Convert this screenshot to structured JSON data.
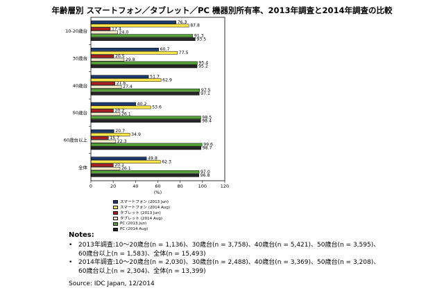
{
  "title": "年齢層別 スマートフォン／タブレット／PC 機器別所有率、2013年調査と2014年調査の比較",
  "chart_data": {
    "type": "bar",
    "orientation": "horizontal",
    "categories": [
      "10-20歳台",
      "30歳台",
      "40歳台",
      "50歳台",
      "60歳台以上",
      "全体"
    ],
    "series": [
      {
        "name": "スマートフォン (2013 Jun)",
        "color": "#1f3b6e",
        "values": [
          76.3,
          60.7,
          51.7,
          40.2,
          20.7,
          49.8
        ]
      },
      {
        "name": "スマートフォン (2014 Aug)",
        "color": "#ffe64d",
        "values": [
          87.8,
          77.5,
          62.9,
          53.6,
          34.9,
          62.3
        ]
      },
      {
        "name": "タブレット (2013 Jun)",
        "color": "#a51e22",
        "values": [
          17.4,
          20.5,
          21.6,
          20.2,
          15.7,
          20.1
        ]
      },
      {
        "name": "タブレット (2014 Aug)",
        "color": "#efe9c8",
        "values": [
          24.0,
          29.8,
          27.4,
          26.1,
          22.3,
          26.1
        ]
      },
      {
        "name": "PC (2013 Jun)",
        "color": "#57a23a",
        "values": [
          91.3,
          95.4,
          97.5,
          98.5,
          99.6,
          97.0
        ]
      },
      {
        "name": "PC (2014 Aug)",
        "color": "#262626",
        "values": [
          93.5,
          95.2,
          97.1,
          98.4,
          98.7,
          96.8
        ]
      }
    ],
    "xlabel": "(%)",
    "xlim": [
      0,
      120
    ],
    "xticks": [
      0,
      20,
      40,
      60,
      80,
      100,
      120
    ],
    "grid": false,
    "legend_position": "bottom"
  },
  "legend_items": [
    {
      "label": "スマートフォン (2013 Jun)",
      "color": "#1f3b6e"
    },
    {
      "label": "スマートフォン (2014 Aug)",
      "color": "#ffe64d"
    },
    {
      "label": "タブレット (2013 Jun)",
      "color": "#a51e22"
    },
    {
      "label": "タブレット (2014 Aug)",
      "color": "#efe9c8"
    },
    {
      "label": "PC (2013 Jun)",
      "color": "#57a23a"
    },
    {
      "label": "PC (2014 Aug)",
      "color": "#262626"
    }
  ],
  "notes": {
    "heading": "Notes:",
    "bullet": "•",
    "items": [
      {
        "line1": "2013年調査:10〜20歳台(n = 1,136)、30歳台(n = 3,758)、40歳台(n = 5,421)、50歳台(n = 3,595)、",
        "line2": "60歳台以上(n = 1,583)、全体(n = 15,493)"
      },
      {
        "line1": "2014年調査:10〜20歳台(n = 2,030)、30歳台(n = 2,488)、40歳台(n = 3,369)、50歳台(n = 3,208)、",
        "line2": "60歳台以上(n = 2,304)、全体(n = 13,399)"
      }
    ]
  },
  "source": "Source: IDC Japan, 12/2014"
}
